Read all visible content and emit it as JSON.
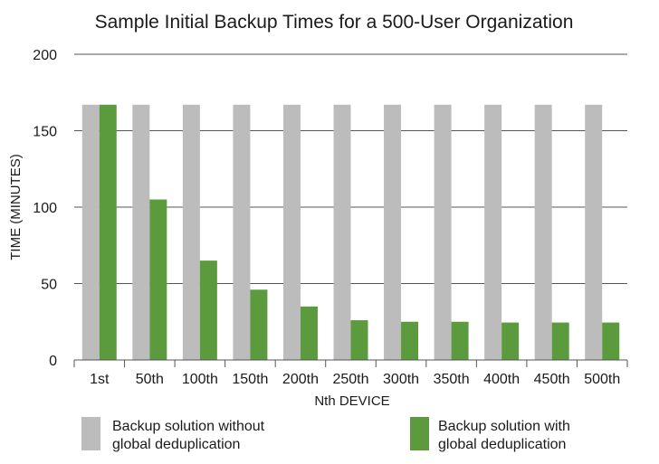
{
  "chart_data": {
    "type": "bar",
    "title": "Sample Initial Backup Times for a 500-User Organization",
    "xlabel": "Nth DEVICE",
    "ylabel": "TIME (MINUTES)",
    "ylim": [
      0,
      200
    ],
    "yticks": [
      0,
      50,
      100,
      150,
      200
    ],
    "grid": true,
    "legend_position": "bottom",
    "categories": [
      "1st",
      "50th",
      "100th",
      "150th",
      "200th",
      "250th",
      "300th",
      "350th",
      "400th",
      "450th",
      "500th"
    ],
    "series": [
      {
        "name": "Backup solution without global deduplication",
        "legend_lines": [
          "Backup solution without",
          "global deduplication"
        ],
        "color": "#bcbcbc",
        "values": [
          167,
          167,
          167,
          167,
          167,
          167,
          167,
          167,
          167,
          167,
          167
        ]
      },
      {
        "name": "Backup solution with global deduplication",
        "legend_lines": [
          "Backup solution with",
          "global deduplication"
        ],
        "color": "#5c9a3e",
        "values": [
          167,
          105,
          65,
          46,
          35,
          26,
          25,
          25,
          24.5,
          24.5,
          24.5
        ]
      }
    ]
  }
}
